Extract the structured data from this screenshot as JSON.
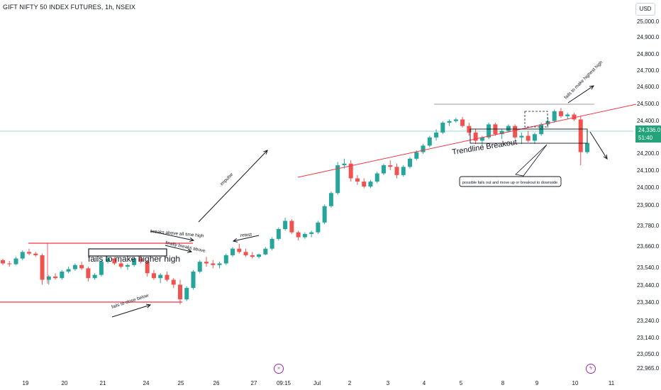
{
  "header": {
    "symbol_title": "GIFT NIFTY 50 INDEX FUTURES, 1h, NSEIX",
    "currency": "USD"
  },
  "price_tag": {
    "price": "24,336.0",
    "countdown": "51:40"
  },
  "chart_data": {
    "type": "candlestick",
    "y_axis": {
      "ticks": [
        "25,000.0",
        "24,900.0",
        "24,800.0",
        "24,700.0",
        "24,600.0",
        "24,500.0",
        "24,400.0",
        "24,336.0",
        "24,300.0",
        "24,200.0",
        "24,100.0",
        "24,000.0",
        "23,900.0",
        "23,780.0",
        "23,660.0",
        "23,540.0",
        "23,440.0",
        "23,340.0",
        "23,240.0",
        "23,140.0",
        "23,050.0",
        "22,965.0"
      ],
      "range": [
        22965,
        25080
      ]
    },
    "x_axis": {
      "ticks": [
        "19",
        "20",
        "21",
        "24",
        "25",
        "26",
        "27",
        "09:15",
        "Jul",
        "2",
        "3",
        "4",
        "5",
        "8",
        "9",
        "10",
        "11"
      ]
    },
    "colors": {
      "up": "#26a69a",
      "down": "#ef5350",
      "last_price_line": "#26a69a",
      "trendline": "#f23645",
      "level": "#f23645",
      "box": "#131722"
    },
    "candles": [
      [
        23620,
        23630,
        23590,
        23600
      ],
      [
        23600,
        23615,
        23580,
        23595
      ],
      [
        23595,
        23640,
        23590,
        23630
      ],
      [
        23630,
        23680,
        23620,
        23670
      ],
      [
        23670,
        23690,
        23650,
        23660
      ],
      [
        23660,
        23670,
        23640,
        23650
      ],
      [
        23650,
        23660,
        23470,
        23500
      ],
      [
        23500,
        23530,
        23470,
        23520
      ],
      [
        23520,
        23540,
        23500,
        23510
      ],
      [
        23510,
        23560,
        23500,
        23550
      ],
      [
        23550,
        23580,
        23540,
        23565
      ],
      [
        23565,
        23600,
        23555,
        23590
      ],
      [
        23590,
        23610,
        23560,
        23570
      ],
      [
        23570,
        23580,
        23490,
        23510
      ],
      [
        23510,
        23540,
        23500,
        23530
      ],
      [
        23530,
        23620,
        23520,
        23610
      ],
      [
        23610,
        23640,
        23600,
        23630
      ],
      [
        23630,
        23640,
        23590,
        23600
      ],
      [
        23600,
        23615,
        23570,
        23580
      ],
      [
        23580,
        23600,
        23560,
        23590
      ],
      [
        23590,
        23640,
        23580,
        23630
      ],
      [
        23630,
        23650,
        23600,
        23610
      ],
      [
        23610,
        23620,
        23520,
        23540
      ],
      [
        23540,
        23560,
        23500,
        23510
      ],
      [
        23510,
        23540,
        23480,
        23530
      ],
      [
        23530,
        23550,
        23490,
        23500
      ],
      [
        23500,
        23510,
        23450,
        23470
      ],
      [
        23470,
        23500,
        23350,
        23380
      ],
      [
        23380,
        23460,
        23370,
        23450
      ],
      [
        23450,
        23560,
        23440,
        23550
      ],
      [
        23550,
        23620,
        23540,
        23610
      ],
      [
        23610,
        23640,
        23580,
        23600
      ],
      [
        23600,
        23620,
        23570,
        23590
      ],
      [
        23590,
        23610,
        23570,
        23600
      ],
      [
        23600,
        23660,
        23590,
        23650
      ],
      [
        23650,
        23700,
        23640,
        23690
      ],
      [
        23690,
        23720,
        23660,
        23670
      ],
      [
        23670,
        23690,
        23640,
        23650
      ],
      [
        23650,
        23670,
        23630,
        23640
      ],
      [
        23640,
        23660,
        23630,
        23655
      ],
      [
        23655,
        23700,
        23650,
        23690
      ],
      [
        23690,
        23760,
        23680,
        23750
      ],
      [
        23750,
        23820,
        23740,
        23810
      ],
      [
        23810,
        23880,
        23800,
        23860
      ],
      [
        23860,
        23870,
        23780,
        23790
      ],
      [
        23790,
        23800,
        23740,
        23760
      ],
      [
        23760,
        23790,
        23750,
        23780
      ],
      [
        23780,
        23800,
        23760,
        23790
      ],
      [
        23790,
        23860,
        23780,
        23850
      ],
      [
        23850,
        23960,
        23840,
        23950
      ],
      [
        23950,
        24040,
        23940,
        24030
      ],
      [
        24030,
        24220,
        24020,
        24200
      ],
      [
        24200,
        24240,
        24180,
        24210
      ],
      [
        24210,
        24230,
        24100,
        24120
      ],
      [
        24120,
        24140,
        24080,
        24100
      ],
      [
        24100,
        24120,
        24060,
        24070
      ],
      [
        24070,
        24110,
        24060,
        24100
      ],
      [
        24100,
        24160,
        24090,
        24150
      ],
      [
        24150,
        24210,
        24140,
        24200
      ],
      [
        24200,
        24230,
        24170,
        24190
      ],
      [
        24190,
        24210,
        24120,
        24140
      ],
      [
        24140,
        24200,
        24130,
        24190
      ],
      [
        24190,
        24250,
        24180,
        24240
      ],
      [
        24240,
        24290,
        24230,
        24280
      ],
      [
        24280,
        24330,
        24270,
        24320
      ],
      [
        24320,
        24380,
        24310,
        24370
      ],
      [
        24370,
        24420,
        24350,
        24400
      ],
      [
        24400,
        24470,
        24390,
        24460
      ],
      [
        24460,
        24480,
        24440,
        24470
      ],
      [
        24470,
        24490,
        24460,
        24480
      ],
      [
        24480,
        24495,
        24430,
        24440
      ],
      [
        24440,
        24460,
        24380,
        24400
      ],
      [
        24400,
        24420,
        24330,
        24350
      ],
      [
        24350,
        24380,
        24320,
        24370
      ],
      [
        24370,
        24460,
        24360,
        24450
      ],
      [
        24450,
        24460,
        24380,
        24390
      ],
      [
        24390,
        24420,
        24360,
        24410
      ],
      [
        24410,
        24450,
        24400,
        24440
      ],
      [
        24440,
        24450,
        24360,
        24370
      ],
      [
        24370,
        24400,
        24330,
        24380
      ],
      [
        24380,
        24410,
        24340,
        24350
      ],
      [
        24350,
        24400,
        24330,
        24390
      ],
      [
        24390,
        24460,
        24380,
        24450
      ],
      [
        24450,
        24490,
        24430,
        24470
      ],
      [
        24470,
        24540,
        24460,
        24530
      ],
      [
        24530,
        24550,
        24490,
        24500
      ],
      [
        24500,
        24520,
        24480,
        24510
      ],
      [
        24510,
        24520,
        24470,
        24480
      ],
      [
        24480,
        24500,
        24200,
        24280
      ],
      [
        24280,
        24350,
        24270,
        24336
      ]
    ]
  },
  "annotations": {
    "fails_close_below": "fails to close below",
    "fails_higher_high": "fails to make higher high",
    "breaks_above_ath": "breaks above all time high",
    "finally_breaks": "finally breaks above",
    "retest": "retest",
    "impulse": "impulse",
    "trendline_breakout": "Trendline Breakout",
    "fails_highest_high": "fails to make highest high",
    "possible_note": "possible fails out and move up or breakout to downside"
  },
  "bottom_icons": {
    "left": "replay-icon",
    "right": "lightning-icon"
  }
}
